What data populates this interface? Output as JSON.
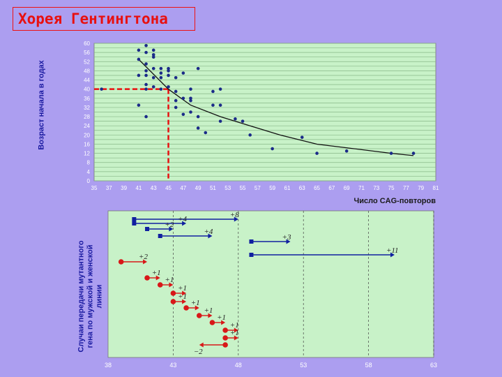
{
  "title": "Хорея Гентингтона",
  "top_ylabel": "Возраст начала в годах",
  "bottom_ylabel_lines": [
    "Случаи передачи мутантного",
    "гена по мужской и женской",
    "линии"
  ],
  "colors": {
    "background": "#ac9ef0",
    "plot_bg": "#c8f2c8",
    "grid": "#88b888",
    "scatter": "#1a2a88",
    "male": "#1020a0",
    "female": "#d81818",
    "accent": "#e81010"
  },
  "chart_data": [
    {
      "type": "scatter",
      "xlabel": "Число CAG-повторов",
      "ylabel": "Возраст начала в годах",
      "xlim": [
        35,
        81
      ],
      "ylim": [
        0,
        60
      ],
      "x_ticks": [
        "35",
        "37",
        "39",
        "41",
        "43",
        "45",
        "47",
        "49",
        "51",
        "53",
        "55",
        "57",
        "59",
        "61",
        "63",
        "65",
        "67",
        "69",
        "71",
        "73",
        "75",
        "77",
        "79",
        "81"
      ],
      "y_ticks": [
        "0",
        "4",
        "8",
        "12",
        "16",
        "20",
        "24",
        "28",
        "32",
        "36",
        "40",
        "44",
        "48",
        "52",
        "56",
        "60"
      ],
      "points": [
        [
          36,
          40
        ],
        [
          41,
          57
        ],
        [
          41,
          53
        ],
        [
          41,
          46
        ],
        [
          41,
          33
        ],
        [
          42,
          59
        ],
        [
          42,
          56
        ],
        [
          42,
          51
        ],
        [
          42,
          48
        ],
        [
          42,
          46
        ],
        [
          42,
          42
        ],
        [
          42,
          40
        ],
        [
          42,
          28
        ],
        [
          43,
          57
        ],
        [
          43,
          55
        ],
        [
          43,
          54
        ],
        [
          43,
          49
        ],
        [
          43,
          45
        ],
        [
          43,
          41
        ],
        [
          44,
          49
        ],
        [
          44,
          47
        ],
        [
          44,
          45
        ],
        [
          44,
          40
        ],
        [
          45,
          49
        ],
        [
          45,
          48
        ],
        [
          45,
          46
        ],
        [
          45,
          41
        ],
        [
          46,
          45
        ],
        [
          46,
          39
        ],
        [
          46,
          35
        ],
        [
          46,
          32
        ],
        [
          47,
          47
        ],
        [
          47,
          36
        ],
        [
          47,
          29
        ],
        [
          48,
          40
        ],
        [
          48,
          36
        ],
        [
          48,
          35
        ],
        [
          48,
          30
        ],
        [
          49,
          49
        ],
        [
          49,
          28
        ],
        [
          49,
          23
        ],
        [
          50,
          21
        ],
        [
          51,
          39
        ],
        [
          51,
          33
        ],
        [
          52,
          40
        ],
        [
          52,
          33
        ],
        [
          52,
          26
        ],
        [
          54,
          27
        ],
        [
          55,
          26
        ],
        [
          56,
          20
        ],
        [
          59,
          14
        ],
        [
          63,
          19
        ],
        [
          65,
          12
        ],
        [
          69,
          13
        ],
        [
          75,
          12
        ],
        [
          78,
          12
        ]
      ],
      "trend": [
        [
          41,
          53
        ],
        [
          45,
          40
        ],
        [
          48,
          33
        ],
        [
          52,
          28
        ],
        [
          56,
          24
        ],
        [
          60,
          20
        ],
        [
          65,
          16
        ],
        [
          70,
          14
        ],
        [
          75,
          12
        ],
        [
          78,
          11
        ]
      ],
      "reference_line": {
        "x": 45,
        "y": 40
      }
    },
    {
      "type": "arrows",
      "xlim": [
        38,
        63
      ],
      "x_ticks": [
        "38",
        "43",
        "48",
        "53",
        "58",
        "63"
      ],
      "male_arrows": [
        {
          "from": 40,
          "to": 48,
          "label": "+8"
        },
        {
          "from": 40,
          "to": 44,
          "label": "+4"
        },
        {
          "from": 41,
          "to": 43,
          "label": "+2"
        },
        {
          "from": 42,
          "to": 46,
          "label": "+4"
        },
        {
          "from": 49,
          "to": 52,
          "label": "+3"
        },
        {
          "from": 49,
          "to": 60,
          "label": "+11"
        }
      ],
      "female_arrows": [
        {
          "from": 39,
          "to": 41,
          "label": "+2"
        },
        {
          "from": 41,
          "to": 42,
          "label": "+1"
        },
        {
          "from": 42,
          "to": 43,
          "label": "+1"
        },
        {
          "from": 43,
          "to": 44,
          "label": "+1"
        },
        {
          "from": 43,
          "to": 44,
          "label": "+1"
        },
        {
          "from": 44,
          "to": 45,
          "label": "+1"
        },
        {
          "from": 45,
          "to": 46,
          "label": "+1"
        },
        {
          "from": 46,
          "to": 47,
          "label": "+1"
        },
        {
          "from": 47,
          "to": 48,
          "label": "+1"
        },
        {
          "from": 47,
          "to": 48,
          "label": "+1"
        },
        {
          "from": 47,
          "to": 45,
          "label": "−2"
        }
      ]
    }
  ]
}
